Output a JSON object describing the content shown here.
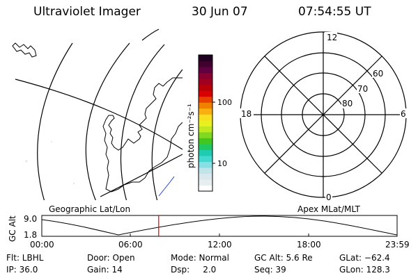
{
  "header": {
    "title": "Ultraviolet Imager",
    "date": "30 Jun 07",
    "time": "07:54:55 UT"
  },
  "colorbar": {
    "unit_label": "photon cm⁻²s⁻¹",
    "tick_100": "100",
    "tick_10": "10",
    "colors": [
      "#ffffff",
      "#e8eef0",
      "#d8e8ec",
      "#c0e4ea",
      "#88dee2",
      "#44d8d0",
      "#20ccb0",
      "#20c860",
      "#40c820",
      "#80d820",
      "#c0e820",
      "#e8f020",
      "#f8e020",
      "#f8b010",
      "#f08000",
      "#e84000",
      "#d80000",
      "#b80008",
      "#a00020",
      "#880030",
      "#600040",
      "#400030",
      "#200020"
    ]
  },
  "left_map": {
    "label": "Geographic Lat/Lon"
  },
  "right_map": {
    "label": "Apex MLat/MLT",
    "mlt_12": "12",
    "mlt_18": "18",
    "mlt_6": "6",
    "mlt_0": "0",
    "lat_60": "60",
    "lat_70": "70",
    "lat_80": "80"
  },
  "orbit": {
    "ylabel": "GC Alt",
    "ytick_max": "9.0",
    "ytick_min": "1.8",
    "xticks": [
      "00:00",
      "06:00",
      "12:00",
      "18:00",
      "23:59"
    ],
    "current_time_fraction": 0.329,
    "marker_color": "#dd0000"
  },
  "info": {
    "filter": "Flt: LBHL",
    "door": "Door: Open",
    "mode": "Mode: Normal",
    "gc_alt": "GC Alt: 5.6 Re",
    "glat": "GLat: −62.4",
    "ip": "IP: 36.0",
    "gain": "Gain: 14",
    "dsp": "Dsp:     2.0",
    "seq": "Seq: 39",
    "glon": "GLon: 128.3"
  }
}
